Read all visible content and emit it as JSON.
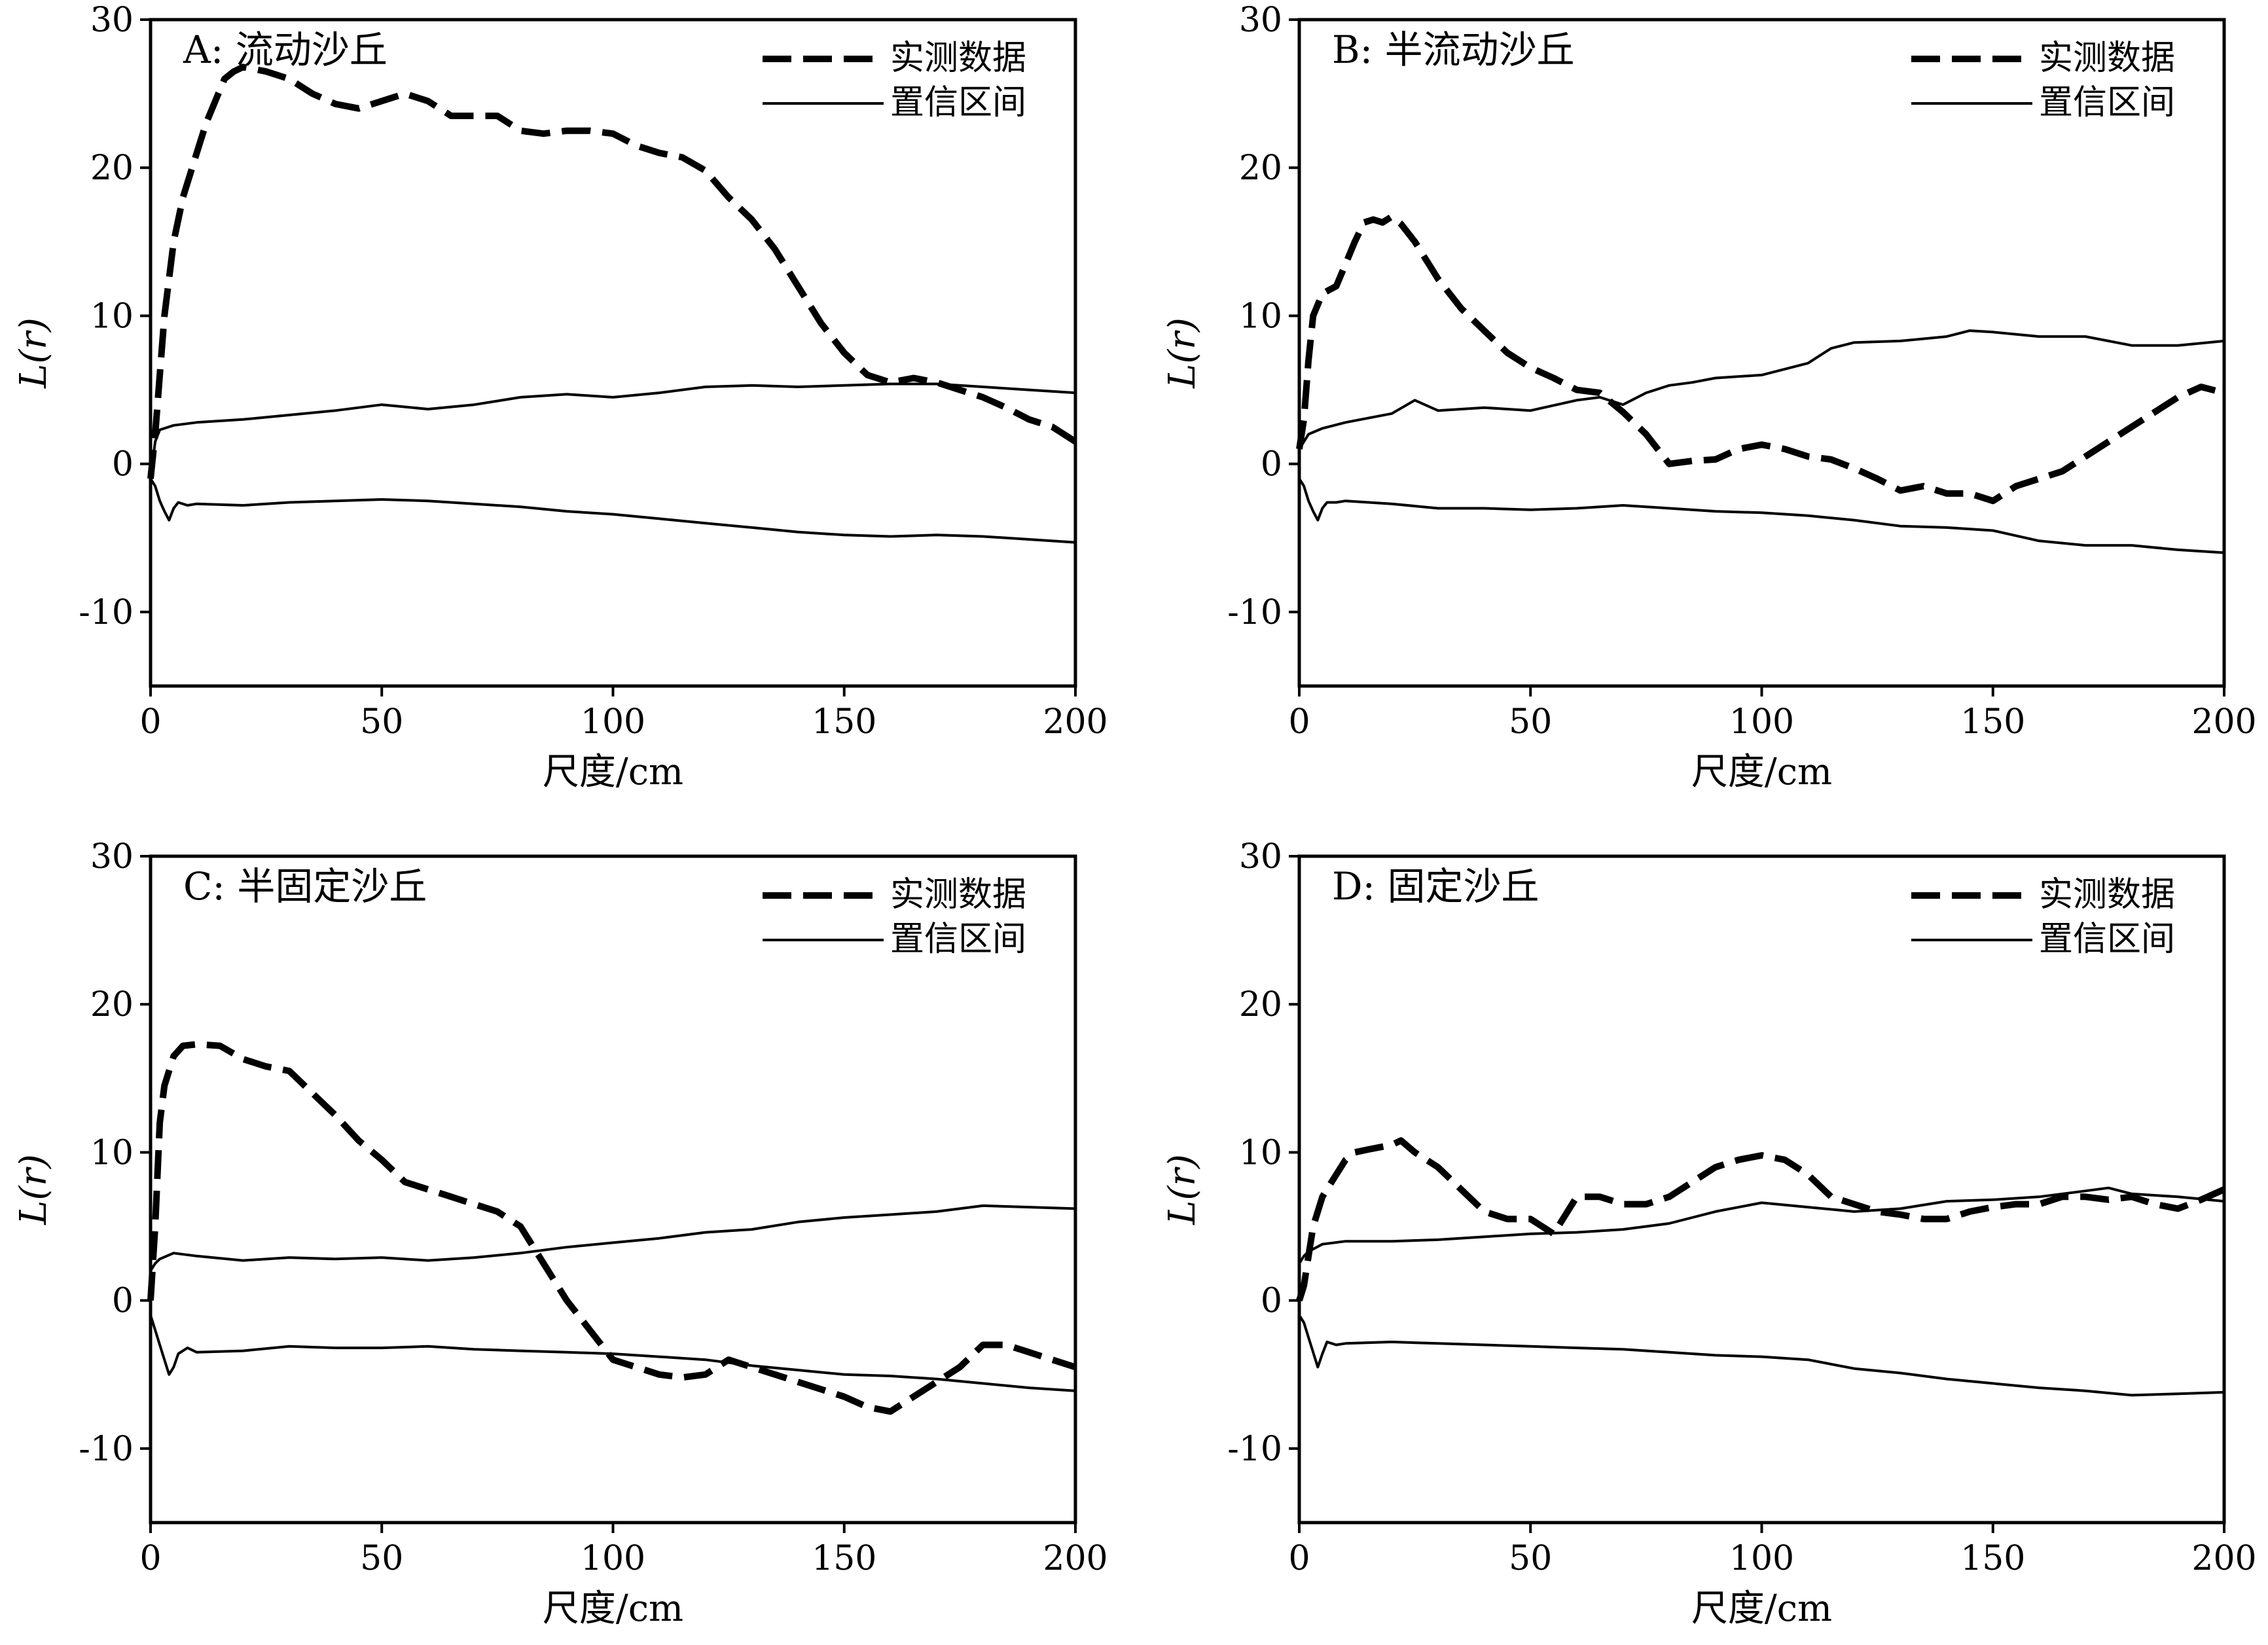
{
  "figure": {
    "legend": {
      "observed": "实测数据",
      "envelope": "置信区间"
    }
  },
  "chart_data": [
    {
      "type": "line",
      "title": "A: 流动沙丘",
      "xlabel": "尺度/cm",
      "ylabel": "L(r)",
      "xlim": [
        0,
        200
      ],
      "ylim": [
        -15,
        30
      ],
      "xticks": [
        0,
        50,
        100,
        150,
        200
      ],
      "yticks": [
        -10,
        0,
        10,
        20,
        30
      ],
      "legend_position": "top-right",
      "series": [
        {
          "name": "实测数据",
          "style": "dashed",
          "x": [
            0,
            1,
            2,
            3,
            5,
            7,
            10,
            12,
            14,
            16,
            18,
            20,
            25,
            30,
            35,
            40,
            45,
            50,
            55,
            60,
            65,
            70,
            75,
            80,
            85,
            90,
            95,
            100,
            105,
            110,
            115,
            120,
            125,
            130,
            135,
            140,
            145,
            150,
            155,
            160,
            165,
            170,
            175,
            180,
            185,
            190,
            195,
            200
          ],
          "y": [
            -1,
            2,
            6,
            10,
            15,
            18,
            21,
            23,
            24.5,
            26,
            26.5,
            26.8,
            26.5,
            26,
            25,
            24.3,
            24,
            24.5,
            25,
            24.5,
            23.5,
            23.5,
            23.5,
            22.5,
            22.3,
            22.5,
            22.5,
            22.3,
            21.5,
            21,
            20.7,
            19.8,
            18,
            16.5,
            14.5,
            12,
            9.5,
            7.5,
            6,
            5.5,
            5.8,
            5.5,
            5,
            4.5,
            3.8,
            3,
            2.5,
            1.5
          ]
        },
        {
          "name": "置信区间",
          "style": "solid",
          "x": [
            0,
            1,
            2,
            5,
            10,
            20,
            30,
            40,
            50,
            60,
            70,
            80,
            90,
            100,
            110,
            120,
            130,
            140,
            150,
            160,
            170,
            180,
            190,
            200
          ],
          "y": [
            -1,
            1.5,
            2.3,
            2.6,
            2.8,
            3.0,
            3.3,
            3.6,
            4.0,
            3.7,
            4.0,
            4.5,
            4.7,
            4.5,
            4.8,
            5.2,
            5.3,
            5.2,
            5.3,
            5.4,
            5.4,
            5.2,
            5.0,
            4.8
          ]
        },
        {
          "name": "置信区间",
          "style": "solid",
          "x": [
            0,
            1,
            2,
            3,
            4,
            5,
            6,
            8,
            10,
            20,
            30,
            40,
            50,
            60,
            70,
            80,
            90,
            100,
            110,
            120,
            130,
            140,
            150,
            160,
            170,
            180,
            190,
            200
          ],
          "y": [
            -1,
            -1.5,
            -2.5,
            -3.2,
            -3.8,
            -3.0,
            -2.6,
            -2.8,
            -2.7,
            -2.8,
            -2.6,
            -2.5,
            -2.4,
            -2.5,
            -2.7,
            -2.9,
            -3.2,
            -3.4,
            -3.7,
            -4.0,
            -4.3,
            -4.6,
            -4.8,
            -4.9,
            -4.8,
            -4.9,
            -5.1,
            -5.3
          ]
        }
      ]
    },
    {
      "type": "line",
      "title": "B: 半流动沙丘",
      "xlabel": "尺度/cm",
      "ylabel": "L(r)",
      "xlim": [
        0,
        200
      ],
      "ylim": [
        -15,
        30
      ],
      "xticks": [
        0,
        50,
        100,
        150,
        200
      ],
      "yticks": [
        -10,
        0,
        10,
        20,
        30
      ],
      "legend_position": "top-right",
      "series": [
        {
          "name": "实测数据",
          "style": "dashed",
          "x": [
            0,
            1,
            2,
            3,
            5,
            8,
            10,
            12,
            14,
            16,
            18,
            20,
            22,
            25,
            30,
            35,
            40,
            45,
            50,
            55,
            60,
            65,
            70,
            75,
            80,
            85,
            90,
            95,
            100,
            105,
            110,
            115,
            120,
            125,
            130,
            135,
            140,
            145,
            150,
            155,
            160,
            165,
            170,
            175,
            180,
            185,
            190,
            195,
            200
          ],
          "y": [
            1,
            3,
            7,
            10,
            11.5,
            12,
            13.5,
            15,
            16.3,
            16.5,
            16.3,
            16.7,
            16.2,
            15,
            12.5,
            10.5,
            9,
            7.5,
            6.5,
            5.8,
            5,
            4.8,
            3.5,
            2,
            0,
            0.2,
            0.3,
            1,
            1.3,
            1,
            0.5,
            0.3,
            -0.3,
            -1,
            -1.8,
            -1.5,
            -2,
            -2,
            -2.5,
            -1.5,
            -1,
            -0.5,
            0.5,
            1.5,
            2.5,
            3.5,
            4.5,
            5.2,
            4.8
          ]
        },
        {
          "name": "置信区间",
          "style": "solid",
          "x": [
            0,
            1,
            2,
            5,
            10,
            20,
            25,
            30,
            40,
            50,
            60,
            65,
            70,
            75,
            80,
            85,
            90,
            100,
            110,
            115,
            120,
            130,
            140,
            145,
            150,
            160,
            170,
            180,
            190,
            200
          ],
          "y": [
            1,
            1.5,
            2,
            2.4,
            2.8,
            3.4,
            4.3,
            3.6,
            3.8,
            3.6,
            4.3,
            4.5,
            4.0,
            4.8,
            5.3,
            5.5,
            5.8,
            6.0,
            6.8,
            7.8,
            8.2,
            8.3,
            8.6,
            9.0,
            8.9,
            8.6,
            8.6,
            8.0,
            8.0,
            8.3
          ]
        },
        {
          "name": "置信区间",
          "style": "solid",
          "x": [
            0,
            1,
            2,
            3,
            4,
            5,
            6,
            8,
            10,
            20,
            30,
            40,
            50,
            60,
            70,
            80,
            90,
            100,
            110,
            120,
            130,
            140,
            150,
            160,
            170,
            180,
            190,
            200
          ],
          "y": [
            -1,
            -1.5,
            -2.5,
            -3.2,
            -3.8,
            -3.0,
            -2.6,
            -2.6,
            -2.5,
            -2.7,
            -3.0,
            -3.0,
            -3.1,
            -3.0,
            -2.8,
            -3.0,
            -3.2,
            -3.3,
            -3.5,
            -3.8,
            -4.2,
            -4.3,
            -4.5,
            -5.2,
            -5.5,
            -5.5,
            -5.8,
            -6.0
          ]
        }
      ]
    },
    {
      "type": "line",
      "title": "C: 半固定沙丘",
      "xlabel": "尺度/cm",
      "ylabel": "L(r)",
      "xlim": [
        0,
        200
      ],
      "ylim": [
        -15,
        30
      ],
      "xticks": [
        0,
        50,
        100,
        150,
        200
      ],
      "yticks": [
        -10,
        0,
        10,
        20,
        30
      ],
      "legend_position": "top-right",
      "series": [
        {
          "name": "实测数据",
          "style": "dashed",
          "x": [
            0,
            1,
            2,
            3,
            5,
            7,
            10,
            15,
            20,
            25,
            30,
            35,
            40,
            45,
            50,
            55,
            60,
            65,
            70,
            75,
            80,
            85,
            90,
            95,
            100,
            105,
            110,
            115,
            120,
            125,
            130,
            135,
            140,
            145,
            150,
            155,
            160,
            165,
            170,
            175,
            180,
            185,
            190,
            195,
            200
          ],
          "y": [
            0,
            5,
            12,
            14.5,
            16.5,
            17.2,
            17.3,
            17.2,
            16.3,
            15.8,
            15.5,
            14,
            12.5,
            10.8,
            9.5,
            8,
            7.5,
            7,
            6.5,
            6,
            5,
            2.5,
            0,
            -2,
            -4,
            -4.5,
            -5,
            -5.2,
            -5,
            -4,
            -4.5,
            -5,
            -5.5,
            -6,
            -6.5,
            -7.2,
            -7.5,
            -6.5,
            -5.5,
            -4.5,
            -3,
            -3,
            -3.5,
            -4,
            -4.5
          ]
        },
        {
          "name": "置信区间",
          "style": "solid",
          "x": [
            0,
            1,
            2,
            5,
            10,
            20,
            30,
            40,
            50,
            60,
            70,
            80,
            90,
            100,
            110,
            120,
            130,
            140,
            150,
            160,
            170,
            180,
            190,
            200
          ],
          "y": [
            2,
            2.5,
            2.8,
            3.2,
            3.0,
            2.7,
            2.9,
            2.8,
            2.9,
            2.7,
            2.9,
            3.2,
            3.6,
            3.9,
            4.2,
            4.6,
            4.8,
            5.3,
            5.6,
            5.8,
            6.0,
            6.4,
            6.3,
            6.2
          ]
        },
        {
          "name": "置信区间",
          "style": "solid",
          "x": [
            0,
            1,
            2,
            3,
            4,
            5,
            6,
            8,
            10,
            20,
            30,
            40,
            50,
            60,
            70,
            80,
            90,
            100,
            110,
            120,
            130,
            140,
            150,
            160,
            170,
            180,
            190,
            200
          ],
          "y": [
            -1,
            -2,
            -3,
            -4,
            -5,
            -4.5,
            -3.6,
            -3.2,
            -3.5,
            -3.4,
            -3.1,
            -3.2,
            -3.2,
            -3.1,
            -3.3,
            -3.4,
            -3.5,
            -3.6,
            -3.8,
            -4.0,
            -4.4,
            -4.7,
            -5.0,
            -5.1,
            -5.3,
            -5.6,
            -5.9,
            -6.1
          ]
        }
      ]
    },
    {
      "type": "line",
      "title": "D: 固定沙丘",
      "xlabel": "尺度/cm",
      "ylabel": "L(r)",
      "xlim": [
        0,
        200
      ],
      "ylim": [
        -15,
        30
      ],
      "xticks": [
        0,
        50,
        100,
        150,
        200
      ],
      "yticks": [
        -10,
        0,
        10,
        20,
        30
      ],
      "legend_position": "top-right",
      "series": [
        {
          "name": "实测数据",
          "style": "dashed",
          "x": [
            0,
            1,
            2,
            3,
            5,
            8,
            10,
            12,
            15,
            20,
            22,
            25,
            30,
            35,
            40,
            45,
            50,
            55,
            60,
            65,
            70,
            75,
            80,
            85,
            90,
            95,
            100,
            105,
            110,
            115,
            120,
            125,
            130,
            135,
            140,
            145,
            150,
            155,
            160,
            165,
            170,
            175,
            180,
            185,
            190,
            195,
            200
          ],
          "y": [
            0,
            1,
            3,
            5,
            7,
            8.5,
            9.5,
            10,
            10.2,
            10.5,
            10.8,
            10,
            9,
            7.5,
            6,
            5.5,
            5.5,
            4.5,
            7,
            7,
            6.5,
            6.5,
            7,
            8,
            9,
            9.5,
            9.8,
            9.5,
            8.5,
            7,
            6.5,
            6,
            5.8,
            5.5,
            5.5,
            6,
            6.3,
            6.5,
            6.5,
            7,
            7,
            6.8,
            7,
            6.5,
            6.2,
            6.8,
            7.5
          ]
        },
        {
          "name": "置信区间",
          "style": "solid",
          "x": [
            0,
            1,
            2,
            5,
            10,
            20,
            30,
            40,
            50,
            60,
            70,
            80,
            90,
            100,
            110,
            120,
            130,
            140,
            150,
            160,
            170,
            175,
            180,
            190,
            200
          ],
          "y": [
            2.5,
            3,
            3.3,
            3.8,
            4.0,
            4.0,
            4.1,
            4.3,
            4.5,
            4.6,
            4.8,
            5.2,
            6.0,
            6.6,
            6.3,
            6.0,
            6.2,
            6.7,
            6.8,
            7.0,
            7.4,
            7.6,
            7.2,
            7.0,
            6.7
          ]
        },
        {
          "name": "置信区间",
          "style": "solid",
          "x": [
            0,
            1,
            2,
            3,
            4,
            5,
            6,
            8,
            10,
            20,
            30,
            40,
            50,
            60,
            70,
            80,
            90,
            100,
            110,
            120,
            130,
            140,
            150,
            160,
            170,
            180,
            190,
            200
          ],
          "y": [
            -1,
            -1.5,
            -2.5,
            -3.5,
            -4.5,
            -3.6,
            -2.8,
            -3.0,
            -2.9,
            -2.8,
            -2.9,
            -3.0,
            -3.1,
            -3.2,
            -3.3,
            -3.5,
            -3.7,
            -3.8,
            -4.0,
            -4.6,
            -4.9,
            -5.3,
            -5.6,
            -5.9,
            -6.1,
            -6.4,
            -6.3,
            -6.2
          ]
        }
      ]
    }
  ]
}
